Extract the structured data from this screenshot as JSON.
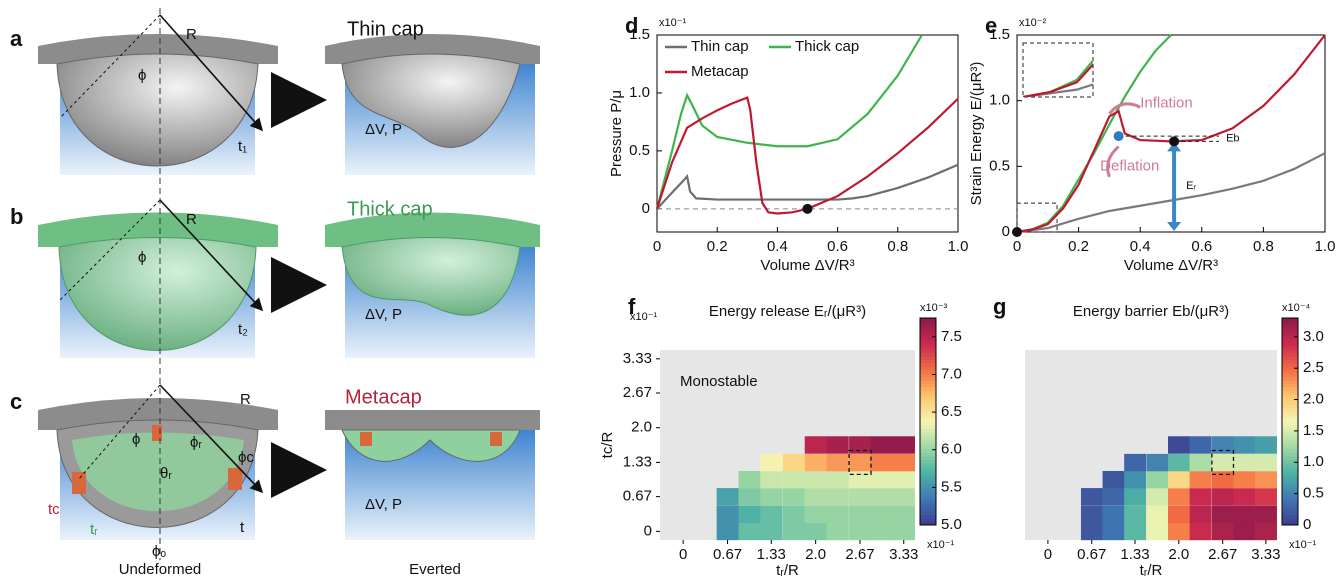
{
  "figure": {
    "panels": [
      {
        "label": "a",
        "title": "Thin cap",
        "radius": "R",
        "angle": "ϕ",
        "thickness": "t₁",
        "state": "ΔV, P"
      },
      {
        "label": "b",
        "title": "Thick cap",
        "radius": "R",
        "angle": "ϕ",
        "thickness": "t₂",
        "state": "ΔV, P"
      },
      {
        "label": "c",
        "title": "Metacap",
        "radius": "R",
        "angle": "ϕ",
        "rib_angle": "ϕᵣ",
        "rib_theta": "θᵣ",
        "cut_angle": "ϕc",
        "cut_thickness": "tc",
        "rib_thickness": "tᵣ",
        "thickness": "t",
        "offset_angle": "ϕₒ",
        "state": "ΔV, P"
      }
    ],
    "captions": [
      "Undeformed",
      "Everted"
    ]
  },
  "chart_data": [
    {
      "type": "line",
      "label": "d",
      "ylabel": "Pressure P/μ",
      "xlabel": "Volume ΔV/R³",
      "y_scale_label": "x10⁻¹",
      "xlim": [
        0,
        1
      ],
      "ylim": [
        -0.2,
        1.5
      ],
      "xticks": [
        0,
        0.2,
        0.4,
        0.6,
        0.8,
        {
          "value": 1,
          "label": "1.0"
        }
      ],
      "yticks": [
        0,
        0.5,
        {
          "value": 1,
          "label": "1.0"
        },
        1.5
      ],
      "reference_line": 0,
      "legend": "top-left",
      "series": [
        {
          "name": "Thin cap",
          "color": "#6e6e6e",
          "x": [
            0,
            0.05,
            0.09,
            0.1,
            0.11,
            0.13,
            0.2,
            0.3,
            0.4,
            0.5,
            0.55,
            0.6,
            0.65,
            0.7,
            0.8,
            0.9,
            1.0
          ],
          "values": [
            0,
            0.14,
            0.25,
            0.28,
            0.15,
            0.09,
            0.08,
            0.08,
            0.08,
            0.08,
            0.08,
            0.08,
            0.09,
            0.11,
            0.18,
            0.27,
            0.38
          ]
        },
        {
          "name": "Thick cap",
          "color": "#3db54a",
          "x": [
            0,
            0.05,
            0.08,
            0.1,
            0.12,
            0.15,
            0.2,
            0.3,
            0.4,
            0.5,
            0.6,
            0.7,
            0.8,
            0.88
          ],
          "values": [
            0,
            0.5,
            0.82,
            0.98,
            0.88,
            0.72,
            0.62,
            0.57,
            0.54,
            0.54,
            0.6,
            0.82,
            1.15,
            1.5
          ]
        },
        {
          "name": "Metacap",
          "color": "#c0182f",
          "x": [
            0,
            0.05,
            0.1,
            0.15,
            0.2,
            0.25,
            0.3,
            0.31,
            0.33,
            0.35,
            0.37,
            0.4,
            0.45,
            0.5,
            0.6,
            0.7,
            0.8,
            0.9,
            1.0
          ],
          "values": [
            0,
            0.4,
            0.7,
            0.78,
            0.85,
            0.91,
            0.96,
            0.85,
            0.4,
            0.05,
            -0.03,
            -0.04,
            -0.03,
            0,
            0.11,
            0.28,
            0.48,
            0.7,
            0.95
          ]
        }
      ],
      "points": [
        {
          "x": 0.5,
          "y": 0,
          "color": "#111111"
        }
      ]
    },
    {
      "type": "line",
      "label": "e",
      "ylabel": "Strain Energy E/(μR³)",
      "xlabel": "Volume ΔV/R³",
      "y_scale_label": "x10⁻²",
      "xlim": [
        0,
        1
      ],
      "ylim": [
        0,
        1.5
      ],
      "xticks": [
        0,
        0.2,
        0.4,
        0.6,
        0.8,
        {
          "value": 1,
          "label": "1.0"
        }
      ],
      "yticks": [
        0,
        0.5,
        {
          "value": 1,
          "label": "1.0"
        },
        1.5
      ],
      "series": [
        {
          "name": "Thin cap",
          "color": "#7a7a7a",
          "x": [
            0,
            0.1,
            0.2,
            0.3,
            0.4,
            0.5,
            0.6,
            0.7,
            0.8,
            0.9,
            1.0
          ],
          "values": [
            0,
            0.03,
            0.1,
            0.16,
            0.2,
            0.24,
            0.28,
            0.33,
            0.39,
            0.48,
            0.6
          ]
        },
        {
          "name": "Thick cap",
          "color": "#3db54a",
          "x": [
            0,
            0.05,
            0.1,
            0.15,
            0.2,
            0.25,
            0.3,
            0.35,
            0.4,
            0.45,
            0.5
          ],
          "values": [
            0,
            0.02,
            0.07,
            0.2,
            0.4,
            0.6,
            0.82,
            1.03,
            1.22,
            1.38,
            1.5
          ]
        },
        {
          "name": "Metacap",
          "color": "#c0182f",
          "x": [
            0,
            0.05,
            0.1,
            0.15,
            0.2,
            0.25,
            0.3,
            0.33,
            0.35,
            0.4,
            0.5,
            0.6,
            0.7,
            0.8,
            0.9,
            1.0
          ],
          "values": [
            0,
            0.02,
            0.06,
            0.18,
            0.36,
            0.62,
            0.88,
            0.92,
            0.75,
            0.7,
            0.69,
            0.7,
            0.79,
            0.96,
            1.2,
            1.5
          ]
        }
      ],
      "points": [
        {
          "x": 0,
          "y": 0,
          "color": "#111111"
        },
        {
          "x": 0.33,
          "y": 0.73,
          "color": "#2a7fc1"
        },
        {
          "x": 0.51,
          "y": 0.69,
          "color": "#111111"
        }
      ],
      "annotations": [
        {
          "text": "Inflation",
          "color": "#d07c93"
        },
        {
          "text": "Deflation",
          "color": "#d07c93"
        },
        {
          "text": "Eᵣ",
          "color": "#111111"
        },
        {
          "text": "Eb",
          "color": "#111111"
        }
      ],
      "inset": {
        "xlim": [
          0,
          0.13
        ],
        "ylim": [
          0,
          0.22
        ]
      }
    },
    {
      "type": "heatmap",
      "label": "f",
      "title": "Energy release Eᵣ/(μR³)",
      "xlabel": "tᵣ/R",
      "ylabel": "tc/R",
      "x_scale_label": "x10⁻¹",
      "y_scale_label": "x10⁻¹",
      "annotation": "Monostable",
      "background": "#e6e6e6",
      "xlim": [
        -0.35,
        3.5
      ],
      "ylim": [
        -0.167,
        3.5
      ],
      "xticks": [
        0,
        0.67,
        1.33,
        {
          "value": 2,
          "label": "2.0"
        },
        2.67,
        3.33
      ],
      "yticks": [
        0,
        0.67,
        1.33,
        {
          "value": 2,
          "label": "2.0"
        },
        2.67,
        3.33
      ],
      "x": [
        0.67,
        1.0,
        1.33,
        1.67,
        2.0,
        2.33,
        2.67,
        3.0,
        3.33
      ],
      "y": [
        0,
        0.33,
        0.67,
        1.0,
        1.33,
        1.67
      ],
      "z": [
        [
          5.5,
          5.8,
          5.8,
          5.9,
          5.9,
          6.0,
          6.0,
          6.0,
          6.0
        ],
        [
          5.5,
          5.7,
          5.8,
          5.9,
          6.0,
          6.0,
          6.0,
          6.0,
          6.0
        ],
        [
          5.6,
          5.9,
          6.0,
          6.0,
          6.1,
          6.1,
          6.1,
          6.1,
          6.1
        ],
        [
          null,
          6.0,
          6.2,
          6.2,
          6.2,
          6.2,
          6.3,
          6.3,
          6.3
        ],
        [
          null,
          null,
          6.4,
          6.6,
          6.8,
          6.9,
          6.9,
          7.0,
          7.0
        ],
        [
          null,
          null,
          null,
          null,
          7.5,
          7.6,
          7.6,
          7.7,
          7.7
        ]
      ],
      "highlight": {
        "x": 2.67,
        "y": 1.33
      },
      "colormap": [
        "#3e3b8f",
        "#3f76b3",
        "#4bb1a5",
        "#9fd8a3",
        "#f4f6b4",
        "#fdc56c",
        "#f36e44",
        "#cc2a4f",
        "#8b1a4b"
      ],
      "colorbar": {
        "lim": [
          5.0,
          7.75
        ],
        "ticks": [
          {
            "value": 5,
            "label": "5.0"
          },
          5.5,
          {
            "value": 6,
            "label": "6.0"
          },
          6.5,
          {
            "value": 7,
            "label": "7.0"
          },
          7.5
        ],
        "scale_label": "x10⁻³"
      }
    },
    {
      "type": "heatmap",
      "label": "g",
      "title": "Energy barrier Eb/(μR³)",
      "xlabel": "tᵣ/R",
      "x_scale_label": "x10⁻¹",
      "background": "#e6e6e6",
      "xlim": [
        -0.35,
        3.5
      ],
      "ylim": [
        -0.167,
        3.5
      ],
      "xticks": [
        0,
        0.67,
        1.33,
        {
          "value": 2,
          "label": "2.0"
        },
        2.67,
        3.33
      ],
      "x": [
        0.67,
        1.0,
        1.33,
        1.67,
        2.0,
        2.33,
        2.67,
        3.0,
        3.33
      ],
      "y": [
        0,
        0.33,
        0.67,
        1.0,
        1.33,
        1.67
      ],
      "z": [
        [
          0.2,
          0.4,
          0.9,
          1.6,
          2.4,
          2.9,
          3.1,
          3.2,
          3.1
        ],
        [
          0.2,
          0.4,
          0.9,
          1.6,
          2.5,
          3.0,
          3.2,
          3.2,
          3.2
        ],
        [
          0.2,
          0.3,
          0.8,
          1.5,
          2.4,
          2.9,
          3.0,
          2.9,
          2.8
        ],
        [
          null,
          0.2,
          0.6,
          1.2,
          1.9,
          2.4,
          2.5,
          2.4,
          2.3
        ],
        [
          null,
          null,
          0.3,
          0.5,
          0.9,
          1.3,
          1.5,
          1.5,
          1.5
        ],
        [
          null,
          null,
          null,
          null,
          0.1,
          0.3,
          0.5,
          0.6,
          0.7
        ]
      ],
      "highlight": {
        "x": 2.67,
        "y": 1.33
      },
      "colormap": [
        "#3e3b8f",
        "#3f76b3",
        "#4bb1a5",
        "#9fd8a3",
        "#f4f6b4",
        "#fdc56c",
        "#f36e44",
        "#cc2a4f",
        "#8b1a4b"
      ],
      "colorbar": {
        "lim": [
          0,
          3.3
        ],
        "ticks": [
          0,
          0.5,
          {
            "value": 1,
            "label": "1.0"
          },
          1.5,
          {
            "value": 2,
            "label": "2.0"
          },
          2.5,
          {
            "value": 3,
            "label": "3.0"
          }
        ],
        "scale_label": "x10⁻⁴"
      }
    }
  ]
}
